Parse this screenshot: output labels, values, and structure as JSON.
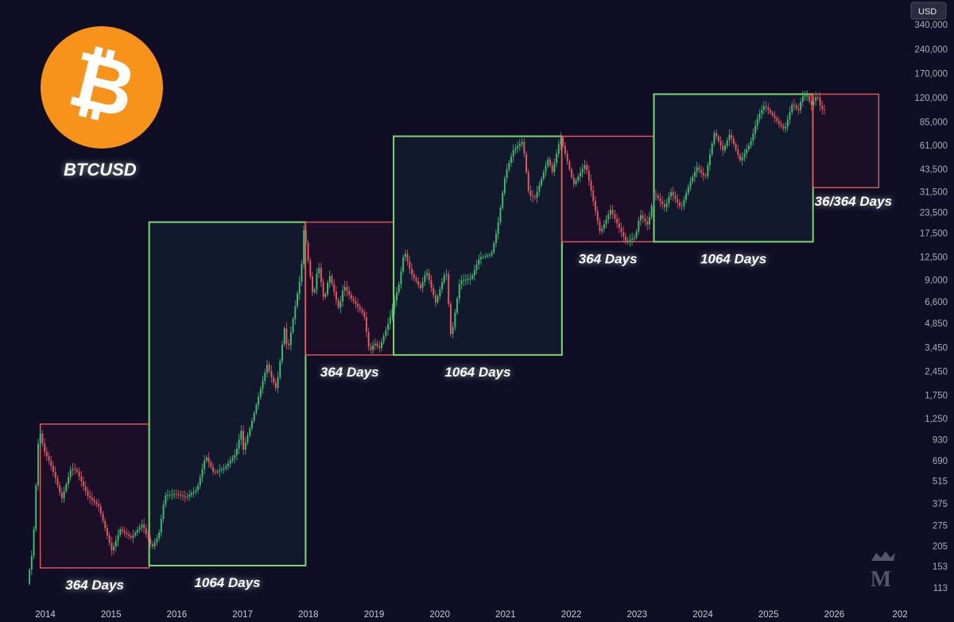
{
  "header": {
    "ticker": "BTCUSD",
    "currency": "USD",
    "logo_symbol": "₿"
  },
  "colors": {
    "background": "#0f0e25",
    "cycle_green": "#7bd86e",
    "cycle_red": "#e8595c",
    "candle_up": "#3fbf72",
    "candle_down": "#e45a63",
    "logo_orange": "#f7931a"
  },
  "chart_data": {
    "type": "candlestick",
    "scale": "log",
    "ylim": [
      100,
      370000
    ],
    "xlim": [
      "2013-10-01",
      "2026-12-31"
    ],
    "y_ticks": [
      "340,000",
      "240,000",
      "170,000",
      "120,000",
      "85,000",
      "61,000",
      "43,500",
      "31,500",
      "23,500",
      "17,500",
      "12,500",
      "9,000",
      "6,600",
      "4,850",
      "3,450",
      "2,450",
      "1,750",
      "1,250",
      "930",
      "690",
      "515",
      "375",
      "275",
      "205",
      "153",
      "113"
    ],
    "y_tick_values": [
      340000,
      240000,
      170000,
      120000,
      85000,
      61000,
      43500,
      31500,
      23500,
      17500,
      12500,
      9000,
      6600,
      4850,
      3450,
      2450,
      1750,
      1250,
      930,
      690,
      515,
      375,
      275,
      205,
      153,
      113
    ],
    "x_ticks": [
      "2014",
      "2015",
      "2016",
      "2017",
      "2018",
      "2019",
      "2020",
      "2021",
      "2022",
      "2023",
      "2024",
      "2025",
      "2026",
      "202"
    ],
    "price_path": [
      [
        "2013-10-01",
        120
      ],
      [
        "2013-11-01",
        200
      ],
      [
        "2013-11-25",
        700
      ],
      [
        "2013-12-05",
        1100
      ],
      [
        "2014-01-01",
        800
      ],
      [
        "2014-02-01",
        680
      ],
      [
        "2014-03-01",
        560
      ],
      [
        "2014-04-10",
        400
      ],
      [
        "2014-06-01",
        620
      ],
      [
        "2014-07-01",
        600
      ],
      [
        "2014-09-01",
        420
      ],
      [
        "2014-11-01",
        360
      ],
      [
        "2015-01-14",
        190
      ],
      [
        "2015-03-01",
        260
      ],
      [
        "2015-05-01",
        230
      ],
      [
        "2015-07-01",
        280
      ],
      [
        "2015-08-24",
        200
      ],
      [
        "2015-10-01",
        240
      ],
      [
        "2015-11-04",
        420
      ],
      [
        "2016-01-01",
        430
      ],
      [
        "2016-03-01",
        410
      ],
      [
        "2016-05-01",
        460
      ],
      [
        "2016-06-18",
        740
      ],
      [
        "2016-08-01",
        580
      ],
      [
        "2016-10-01",
        620
      ],
      [
        "2016-12-01",
        760
      ],
      [
        "2017-01-05",
        1100
      ],
      [
        "2017-01-12",
        800
      ],
      [
        "2017-03-01",
        1200
      ],
      [
        "2017-05-25",
        2700
      ],
      [
        "2017-06-15",
        2300
      ],
      [
        "2017-07-15",
        1900
      ],
      [
        "2017-08-31",
        4700
      ],
      [
        "2017-09-15",
        3200
      ],
      [
        "2017-11-01",
        6600
      ],
      [
        "2017-11-30",
        10000
      ],
      [
        "2017-12-17",
        19800
      ],
      [
        "2018-01-01",
        13500
      ],
      [
        "2018-02-06",
        6900
      ],
      [
        "2018-03-05",
        11500
      ],
      [
        "2018-04-06",
        6600
      ],
      [
        "2018-05-05",
        9800
      ],
      [
        "2018-06-28",
        5900
      ],
      [
        "2018-07-25",
        8400
      ],
      [
        "2018-09-01",
        7000
      ],
      [
        "2018-11-14",
        5500
      ],
      [
        "2018-12-15",
        3200
      ],
      [
        "2019-01-10",
        3700
      ],
      [
        "2019-02-07",
        3400
      ],
      [
        "2019-04-02",
        5000
      ],
      [
        "2019-05-30",
        8700
      ],
      [
        "2019-06-26",
        13800
      ],
      [
        "2019-08-01",
        10000
      ],
      [
        "2019-09-25",
        8000
      ],
      [
        "2019-10-26",
        10300
      ],
      [
        "2019-12-18",
        6500
      ],
      [
        "2020-02-13",
        10500
      ],
      [
        "2020-03-12",
        3900
      ],
      [
        "2020-04-30",
        8900
      ],
      [
        "2020-07-01",
        9200
      ],
      [
        "2020-08-17",
        12400
      ],
      [
        "2020-10-21",
        12900
      ],
      [
        "2020-11-25",
        19000
      ],
      [
        "2021-01-08",
        41000
      ],
      [
        "2021-02-21",
        57000
      ],
      [
        "2021-04-14",
        64800
      ],
      [
        "2021-05-19",
        30000
      ],
      [
        "2021-06-22",
        29000
      ],
      [
        "2021-09-06",
        52000
      ],
      [
        "2021-09-21",
        40000
      ],
      [
        "2021-11-10",
        69000
      ],
      [
        "2022-01-22",
        35000
      ],
      [
        "2022-03-28",
        47000
      ],
      [
        "2022-06-18",
        17600
      ],
      [
        "2022-08-15",
        24400
      ],
      [
        "2022-11-09",
        15500
      ],
      [
        "2022-12-31",
        16600
      ],
      [
        "2023-01-25",
        23000
      ],
      [
        "2023-03-10",
        19600
      ],
      [
        "2023-04-14",
        31000
      ],
      [
        "2023-06-15",
        25000
      ],
      [
        "2023-07-14",
        31800
      ],
      [
        "2023-09-11",
        24900
      ],
      [
        "2023-10-25",
        35000
      ],
      [
        "2023-12-08",
        44700
      ],
      [
        "2024-01-23",
        38500
      ],
      [
        "2024-03-14",
        73800
      ],
      [
        "2024-05-01",
        56500
      ],
      [
        "2024-06-07",
        71900
      ],
      [
        "2024-08-05",
        49000
      ],
      [
        "2024-10-01",
        64000
      ],
      [
        "2024-11-13",
        93000
      ],
      [
        "2024-12-17",
        108000
      ],
      [
        "2025-02-25",
        86000
      ],
      [
        "2025-04-08",
        76000
      ],
      [
        "2025-05-22",
        112000
      ],
      [
        "2025-06-22",
        99000
      ],
      [
        "2025-07-14",
        123000
      ],
      [
        "2025-08-14",
        124000
      ],
      [
        "2025-09-01",
        107000
      ],
      [
        "2025-10-06",
        126000
      ],
      [
        "2025-10-20",
        108000
      ],
      [
        "2025-11-05",
        101000
      ]
    ],
    "cycles": [
      {
        "kind": "bear",
        "label": "364 Days",
        "start": "2013-12-04",
        "end": "2015-08-01",
        "low": 150,
        "high": 1160
      },
      {
        "kind": "bull",
        "label": "1064 Days",
        "start": "2015-08-01",
        "end": "2017-12-17",
        "low": 155,
        "high": 20500
      },
      {
        "kind": "bear",
        "label": "364 Days",
        "start": "2017-12-17",
        "end": "2019-04-20",
        "low": 3100,
        "high": 20500
      },
      {
        "kind": "bull",
        "label": "1064 Days",
        "start": "2019-04-20",
        "end": "2021-11-10",
        "low": 3100,
        "high": 69500
      },
      {
        "kind": "bear",
        "label": "364 Days",
        "start": "2021-11-10",
        "end": "2023-04-05",
        "low": 15500,
        "high": 69500
      },
      {
        "kind": "bull",
        "label": "1064 Days",
        "start": "2023-04-05",
        "end": "2025-09-05",
        "low": 15500,
        "high": 126500
      },
      {
        "kind": "bear",
        "label": "36/364 Days",
        "start": "2025-09-05",
        "end": "2026-09-05",
        "low": 33500,
        "high": 126500
      }
    ]
  }
}
